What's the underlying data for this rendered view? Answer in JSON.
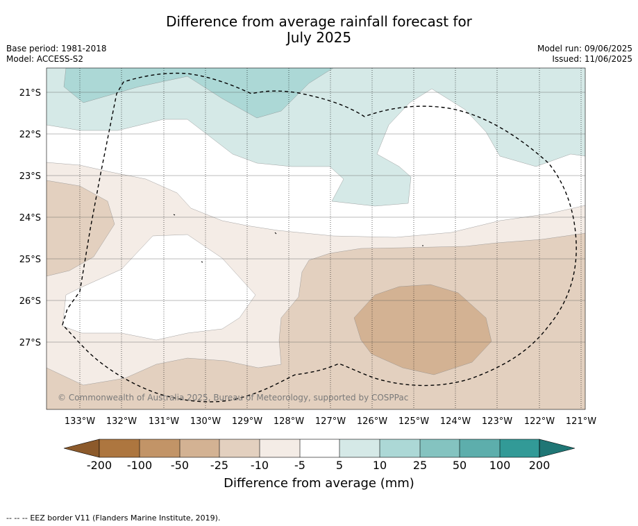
{
  "title": {
    "line1": "Difference from average rainfall forecast for",
    "line2": "July 2025"
  },
  "meta_left": {
    "base_period": "Base period: 1981-2018",
    "model": "Model: ACCESS-S2"
  },
  "meta_right": {
    "model_run": "Model run: 09/06/2025",
    "issued": "Issued: 11/06/2025"
  },
  "map": {
    "latitude_labels": [
      "21°S",
      "22°S",
      "23°S",
      "24°S",
      "25°S",
      "26°S",
      "27°S"
    ],
    "longitude_labels": [
      "133°W",
      "132°W",
      "131°W",
      "130°W",
      "129°W",
      "128°W",
      "127°W",
      "126°W",
      "125°W",
      "124°W",
      "123°W",
      "122°W",
      "121°W"
    ],
    "attribution": "© Commonwealth of Australia 2025, Bureau of Meteorology, supported by COSPPac"
  },
  "colorbar": {
    "labels": [
      "-200",
      "-100",
      "-50",
      "-25",
      "-10",
      "-5",
      "5",
      "10",
      "25",
      "50",
      "100",
      "200"
    ],
    "colors": [
      "#8c5a2b",
      "#ad763f",
      "#c29467",
      "#d3b293",
      "#e3d0bf",
      "#f4ece6",
      "#ffffff",
      "#d5e9e7",
      "#acd8d6",
      "#84c3c0",
      "#5daeac",
      "#329a97",
      "#1f7675"
    ],
    "title": "Difference from average (mm)"
  },
  "footer": {
    "legend_symbol": "-- -- --",
    "text": "EEZ border V11 (Flanders Marine Institute, 2019)."
  }
}
